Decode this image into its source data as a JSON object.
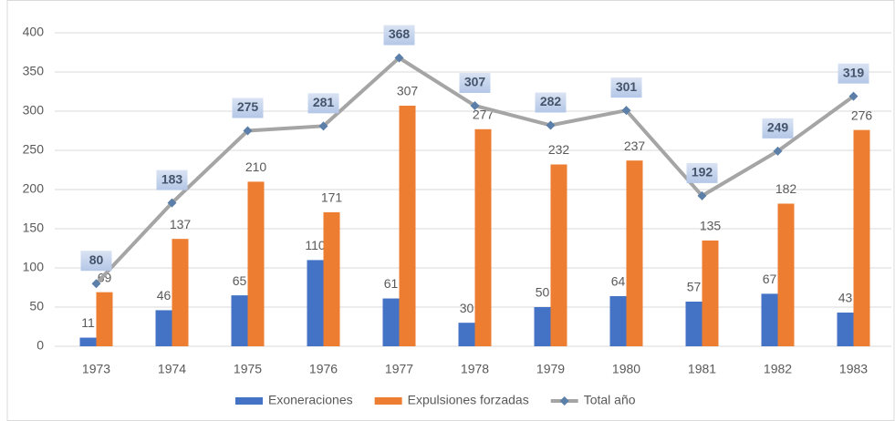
{
  "chart_data": {
    "type": "bar",
    "categories": [
      "1973",
      "1974",
      "1975",
      "1976",
      "1977",
      "1978",
      "1979",
      "1980",
      "1981",
      "1982",
      "1983"
    ],
    "series": [
      {
        "name": "Exoneraciones",
        "color": "#4472c4",
        "values": [
          11,
          46,
          65,
          110,
          61,
          30,
          50,
          64,
          57,
          67,
          43
        ]
      },
      {
        "name": "Expulsiones forzadas",
        "color": "#ed7d31",
        "values": [
          69,
          137,
          210,
          171,
          307,
          277,
          232,
          237,
          135,
          182,
          276
        ]
      },
      {
        "name": "Total año",
        "color": "#a5a5a5",
        "type": "line",
        "values": [
          80,
          183,
          275,
          281,
          368,
          307,
          282,
          301,
          192,
          249,
          319
        ]
      }
    ],
    "ylim": [
      0,
      400
    ],
    "yticks": [
      0,
      50,
      100,
      150,
      200,
      250,
      300,
      350,
      400
    ],
    "grid": true,
    "legend": "bottom"
  }
}
